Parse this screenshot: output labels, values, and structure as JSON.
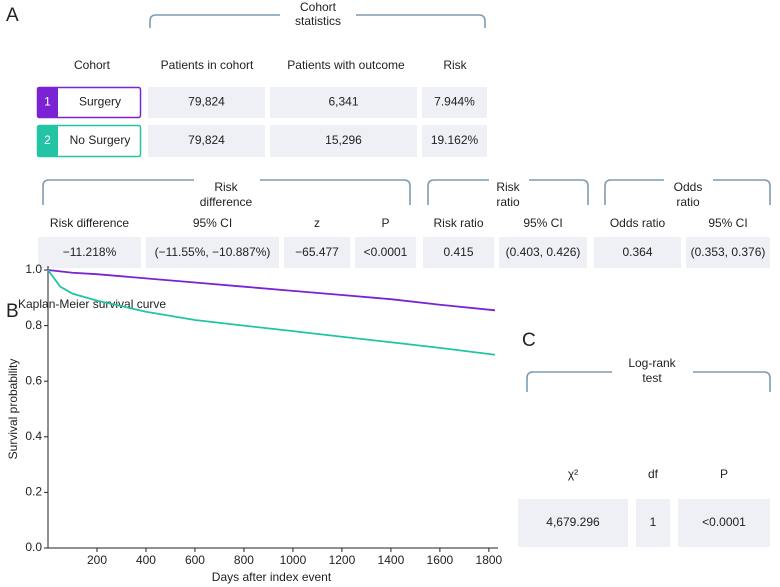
{
  "panel_a": {
    "label": "A",
    "cohort_statistics": {
      "title": [
        "Cohort",
        "statistics"
      ],
      "headers": [
        "Cohort",
        "Patients in cohort",
        "Patients with outcome",
        "Risk"
      ],
      "rows": [
        {
          "index": "1",
          "cohort": "Surgery",
          "cells": [
            "79,824",
            "6,341",
            "7.944%"
          ]
        },
        {
          "index": "2",
          "cohort": "No Surgery",
          "cells": [
            "79,824",
            "15,296",
            "19.162%"
          ]
        }
      ]
    },
    "comparison": {
      "groups": [
        [
          "Risk",
          "difference"
        ],
        [
          "Risk",
          "ratio"
        ],
        [
          "Odds",
          "ratio"
        ]
      ],
      "headers": [
        "Risk difference",
        "95% CI",
        "z",
        "P",
        "Risk ratio",
        "95% CI",
        "Odds ratio",
        "95% CI"
      ],
      "values": [
        "−11.218%",
        "(−11.55%, −10.887%)",
        "−65.477",
        "<0.0001",
        "0.415",
        "(0.403, 0.426)",
        "0.364",
        "(0.353, 0.376)"
      ]
    }
  },
  "chart_data": {
    "type": "line",
    "panel_label": "B",
    "title": "Kaplan-Meier survival curve",
    "xlabel": "Days after index event",
    "ylabel": "Survival probability",
    "x": [
      0,
      50,
      100,
      200,
      400,
      600,
      800,
      1000,
      1200,
      1400,
      1600,
      1825
    ],
    "series": [
      {
        "color": "#7b22d4",
        "values": [
          1.0,
          0.995,
          0.99,
          0.985,
          0.97,
          0.955,
          0.94,
          0.925,
          0.91,
          0.895,
          0.875,
          0.855
        ]
      },
      {
        "color": "#22c4a4",
        "values": [
          1.0,
          0.94,
          0.915,
          0.89,
          0.85,
          0.82,
          0.8,
          0.78,
          0.76,
          0.74,
          0.72,
          0.695
        ]
      }
    ],
    "xlim": [
      0,
      1825
    ],
    "ylim": [
      0,
      1.0
    ],
    "xticks": [
      200,
      400,
      600,
      800,
      1000,
      1200,
      1400,
      1600,
      1800
    ],
    "yticks": [
      {
        "value": 0,
        "label": "0.0"
      },
      0.2,
      0.4,
      0.6,
      0.8,
      {
        "value": 1,
        "label": "1.0"
      }
    ]
  },
  "panel_c": {
    "label": "C",
    "title": [
      "Log-rank",
      "test"
    ],
    "headers": [
      "χ²",
      "df",
      "P"
    ],
    "values": [
      "4,679.296",
      "1",
      "<0.0001"
    ]
  }
}
